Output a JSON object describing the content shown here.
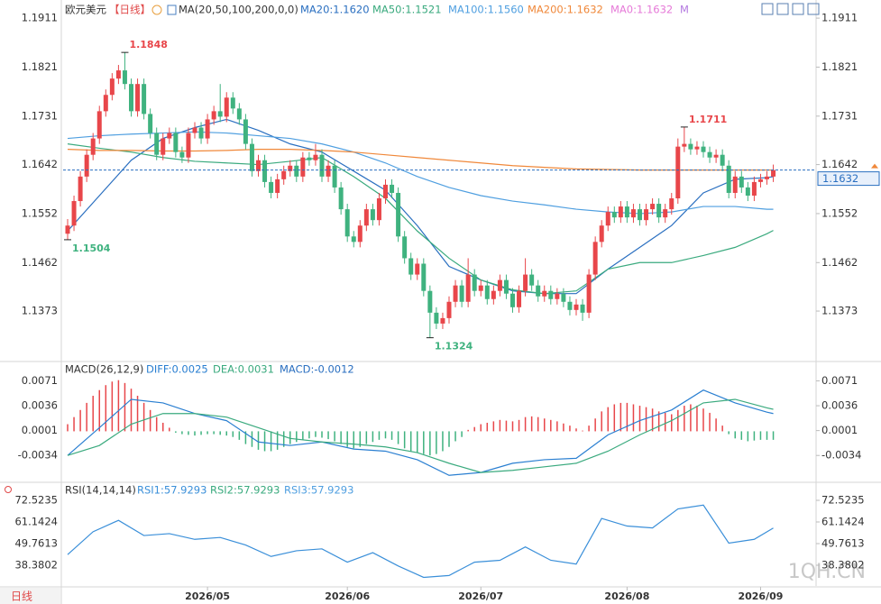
{
  "title": "欧元美元",
  "period": "【日线】",
  "indicator": "MA(20,50,100,200,0,0)",
  "watermark": "1QH.CN",
  "period_button": "日线",
  "chart_data": [
    {
      "type": "candlestick",
      "up_color": "#e8464a",
      "down_color": "#3fb27f",
      "ylim": [
        1.1282,
        1.1936
      ],
      "yticks": [
        1.1911,
        1.1821,
        1.1731,
        1.1642,
        1.1552,
        1.1462,
        1.1373
      ],
      "open": [
        1.1515,
        1.153,
        1.1575,
        1.162,
        1.166,
        1.169,
        1.174,
        1.177,
        1.18,
        1.1815,
        1.179,
        1.174,
        1.179,
        1.1735,
        1.17,
        1.166,
        1.169,
        1.17,
        1.1665,
        1.1655,
        1.17,
        1.171,
        1.169,
        1.1725,
        1.174,
        1.173,
        1.1765,
        1.1745,
        1.1725,
        1.168,
        1.163,
        1.165,
        1.161,
        1.159,
        1.1615,
        1.163,
        1.164,
        1.162,
        1.1655,
        1.165,
        1.166,
        1.162,
        1.164,
        1.16,
        1.156,
        1.151,
        1.15,
        1.153,
        1.156,
        1.154,
        1.158,
        1.1605,
        1.159,
        1.151,
        1.147,
        1.144,
        1.146,
        1.141,
        1.137,
        1.135,
        1.136,
        1.139,
        1.142,
        1.139,
        1.144,
        1.141,
        1.142,
        1.1395,
        1.141,
        1.143,
        1.1405,
        1.138,
        1.141,
        1.144,
        1.142,
        1.14,
        1.141,
        1.1395,
        1.1405,
        1.139,
        1.1375,
        1.1385,
        1.137,
        1.144,
        1.15,
        1.153,
        1.1555,
        1.1545,
        1.1565,
        1.1545,
        1.156,
        1.154,
        1.156,
        1.157,
        1.1545,
        1.156,
        1.158,
        1.1675,
        1.168,
        1.167,
        1.1675,
        1.1665,
        1.1655,
        1.166,
        1.164,
        1.159,
        1.162,
        1.16,
        1.1585,
        1.161,
        1.1615,
        1.162
      ],
      "high": [
        1.1542,
        1.1585,
        1.163,
        1.167,
        1.17,
        1.175,
        1.178,
        1.181,
        1.1825,
        1.1848,
        1.18,
        1.18,
        1.18,
        1.1745,
        1.171,
        1.17,
        1.171,
        1.171,
        1.1675,
        1.171,
        1.172,
        1.172,
        1.1735,
        1.175,
        1.179,
        1.1775,
        1.1775,
        1.1755,
        1.1735,
        1.169,
        1.166,
        1.166,
        1.162,
        1.1625,
        1.164,
        1.165,
        1.165,
        1.1665,
        1.1665,
        1.168,
        1.167,
        1.165,
        1.165,
        1.161,
        1.157,
        1.152,
        1.154,
        1.157,
        1.157,
        1.159,
        1.1615,
        1.1615,
        1.16,
        1.152,
        1.148,
        1.147,
        1.147,
        1.142,
        1.138,
        1.137,
        1.14,
        1.143,
        1.143,
        1.147,
        1.145,
        1.143,
        1.143,
        1.142,
        1.144,
        1.144,
        1.1415,
        1.142,
        1.147,
        1.145,
        1.143,
        1.142,
        1.142,
        1.1415,
        1.1415,
        1.14,
        1.1395,
        1.1395,
        1.145,
        1.151,
        1.154,
        1.1565,
        1.1565,
        1.1575,
        1.1575,
        1.157,
        1.157,
        1.157,
        1.158,
        1.158,
        1.157,
        1.159,
        1.169,
        1.1711,
        1.169,
        1.1685,
        1.1685,
        1.1675,
        1.167,
        1.167,
        1.165,
        1.163,
        1.163,
        1.161,
        1.162,
        1.1625,
        1.163,
        1.1642
      ],
      "low": [
        1.1504,
        1.152,
        1.1565,
        1.161,
        1.165,
        1.168,
        1.173,
        1.176,
        1.179,
        1.178,
        1.173,
        1.173,
        1.1725,
        1.169,
        1.165,
        1.165,
        1.168,
        1.1655,
        1.1645,
        1.1645,
        1.169,
        1.168,
        1.168,
        1.1715,
        1.172,
        1.172,
        1.1735,
        1.1715,
        1.167,
        1.162,
        1.162,
        1.16,
        1.158,
        1.158,
        1.1605,
        1.162,
        1.161,
        1.161,
        1.164,
        1.164,
        1.161,
        1.161,
        1.159,
        1.155,
        1.15,
        1.149,
        1.149,
        1.152,
        1.153,
        1.153,
        1.157,
        1.158,
        1.15,
        1.146,
        1.143,
        1.143,
        1.14,
        1.1324,
        1.134,
        1.134,
        1.135,
        1.138,
        1.138,
        1.138,
        1.14,
        1.14,
        1.1385,
        1.1385,
        1.14,
        1.1395,
        1.137,
        1.137,
        1.14,
        1.141,
        1.139,
        1.139,
        1.1385,
        1.1385,
        1.138,
        1.1365,
        1.1365,
        1.1355,
        1.136,
        1.143,
        1.149,
        1.152,
        1.1535,
        1.1535,
        1.1535,
        1.1535,
        1.153,
        1.153,
        1.155,
        1.1535,
        1.1535,
        1.155,
        1.157,
        1.1665,
        1.166,
        1.166,
        1.1655,
        1.1645,
        1.1645,
        1.163,
        1.158,
        1.158,
        1.159,
        1.1575,
        1.1575,
        1.16,
        1.1605,
        1.161
      ],
      "close": [
        1.153,
        1.1575,
        1.162,
        1.166,
        1.169,
        1.174,
        1.177,
        1.18,
        1.1815,
        1.179,
        1.174,
        1.179,
        1.1735,
        1.17,
        1.166,
        1.169,
        1.17,
        1.1665,
        1.1655,
        1.17,
        1.171,
        1.169,
        1.1725,
        1.174,
        1.173,
        1.1765,
        1.1745,
        1.1725,
        1.168,
        1.163,
        1.165,
        1.161,
        1.159,
        1.1615,
        1.163,
        1.164,
        1.162,
        1.1655,
        1.165,
        1.166,
        1.162,
        1.164,
        1.16,
        1.156,
        1.151,
        1.15,
        1.153,
        1.156,
        1.154,
        1.158,
        1.1605,
        1.159,
        1.151,
        1.147,
        1.144,
        1.146,
        1.141,
        1.137,
        1.135,
        1.136,
        1.139,
        1.142,
        1.139,
        1.144,
        1.141,
        1.142,
        1.1395,
        1.141,
        1.143,
        1.1405,
        1.138,
        1.141,
        1.144,
        1.142,
        1.14,
        1.141,
        1.1395,
        1.1405,
        1.139,
        1.1375,
        1.1385,
        1.137,
        1.144,
        1.15,
        1.153,
        1.1555,
        1.1545,
        1.1565,
        1.1545,
        1.156,
        1.154,
        1.156,
        1.157,
        1.1545,
        1.156,
        1.158,
        1.1675,
        1.168,
        1.167,
        1.1675,
        1.1665,
        1.1655,
        1.166,
        1.164,
        1.159,
        1.162,
        1.16,
        1.1585,
        1.161,
        1.1615,
        1.162,
        1.1632
      ],
      "series": [
        {
          "name": "MA20:1.1620",
          "color": "#2a6fc0",
          "x": [
            0,
            5,
            10,
            15,
            20,
            25,
            30,
            35,
            40,
            45,
            50,
            55,
            60,
            65,
            70,
            75,
            80,
            85,
            90,
            95,
            100,
            105,
            110,
            111
          ],
          "values": [
            1.152,
            1.1585,
            1.165,
            1.169,
            1.171,
            1.1725,
            1.1705,
            1.168,
            1.1665,
            1.163,
            1.1595,
            1.153,
            1.1455,
            1.143,
            1.141,
            1.1405,
            1.1405,
            1.145,
            1.149,
            1.153,
            1.159,
            1.1615,
            1.1618,
            1.162
          ]
        },
        {
          "name": "MA50:1.1521",
          "color": "#3aaa7e",
          "x": [
            0,
            5,
            10,
            15,
            20,
            25,
            30,
            35,
            40,
            45,
            50,
            55,
            60,
            65,
            70,
            75,
            80,
            85,
            90,
            95,
            100,
            105,
            110,
            111
          ],
          "values": [
            1.168,
            1.1672,
            1.1665,
            1.1655,
            1.1648,
            1.1645,
            1.1642,
            1.1648,
            1.1655,
            1.162,
            1.158,
            1.152,
            1.147,
            1.143,
            1.1412,
            1.1405,
            1.141,
            1.145,
            1.1462,
            1.1462,
            1.1475,
            1.149,
            1.1515,
            1.1521
          ]
        },
        {
          "name": "MA100:1.1560",
          "color": "#4f9fe0",
          "x": [
            0,
            5,
            10,
            15,
            20,
            25,
            30,
            35,
            40,
            45,
            50,
            55,
            60,
            65,
            70,
            75,
            80,
            85,
            90,
            95,
            100,
            105,
            110,
            111
          ],
          "values": [
            1.169,
            1.1695,
            1.1698,
            1.17,
            1.1702,
            1.17,
            1.1695,
            1.169,
            1.168,
            1.1665,
            1.1645,
            1.162,
            1.16,
            1.1585,
            1.1575,
            1.1568,
            1.156,
            1.1555,
            1.1552,
            1.1555,
            1.1565,
            1.1565,
            1.156,
            1.156
          ]
        },
        {
          "name": "MA200:1.1632",
          "color": "#f0883a",
          "x": [
            0,
            5,
            10,
            15,
            20,
            25,
            30,
            35,
            40,
            45,
            50,
            55,
            60,
            65,
            70,
            75,
            80,
            85,
            90,
            95,
            100,
            105,
            110,
            111
          ],
          "values": [
            1.167,
            1.1668,
            1.1668,
            1.1667,
            1.1667,
            1.1668,
            1.167,
            1.167,
            1.1668,
            1.1665,
            1.166,
            1.1655,
            1.165,
            1.1645,
            1.164,
            1.1637,
            1.1634,
            1.1633,
            1.1632,
            1.1632,
            1.1632,
            1.1632,
            1.1632,
            1.1632
          ]
        }
      ],
      "legend_extra": [
        {
          "text": "MA0:1.1632",
          "color": "#e67ad8"
        },
        {
          "text": "M",
          "color": "#b47ae0"
        }
      ],
      "annotations": [
        {
          "x": 9,
          "y": 1.1848,
          "color": "#e8464a"
        },
        {
          "x": 97,
          "y": 1.1711,
          "color": "#e8464a"
        },
        {
          "x": 0,
          "y": 1.1504,
          "color": "#3fb27f"
        },
        {
          "x": 57,
          "y": 1.1324,
          "color": "#3fb27f"
        }
      ],
      "last_price": 1.1632,
      "last_price_color": "#2a6fc0"
    },
    {
      "type": "macd",
      "title": "MACD(26,12,9)",
      "ylim": [
        -0.0068,
        0.0097
      ],
      "yticks": [
        0.0071,
        0.0036,
        0.0001,
        -0.0034
      ],
      "histogram_name": "MACD:-0.0012",
      "histogram_color": "#2a6fc0",
      "up_color": "#e8464a",
      "down_color": "#3fb27f",
      "histogram": [
        0.001,
        0.002,
        0.003,
        0.004,
        0.005,
        0.0058,
        0.0065,
        0.007,
        0.0072,
        0.0068,
        0.006,
        0.005,
        0.004,
        0.003,
        0.002,
        0.0012,
        0.0005,
        -0.0002,
        -0.0004,
        -0.0005,
        -0.0006,
        -0.0005,
        -0.0004,
        -0.0004,
        -0.0005,
        -0.0006,
        -0.0008,
        -0.0012,
        -0.0018,
        -0.0022,
        -0.0026,
        -0.0028,
        -0.0028,
        -0.0026,
        -0.0022,
        -0.0018,
        -0.0015,
        -0.0012,
        -0.001,
        -0.0008,
        -0.0009,
        -0.0011,
        -0.0014,
        -0.0018,
        -0.0022,
        -0.0024,
        -0.0022,
        -0.0018,
        -0.0015,
        -0.0012,
        -0.001,
        -0.0012,
        -0.0018,
        -0.0024,
        -0.0028,
        -0.003,
        -0.0032,
        -0.0034,
        -0.0032,
        -0.0028,
        -0.0022,
        -0.0014,
        -0.0008,
        0.0002,
        0.0006,
        0.001,
        0.0012,
        0.0014,
        0.0016,
        0.0015,
        0.0014,
        0.0016,
        0.002,
        0.0021,
        0.002,
        0.0018,
        0.0016,
        0.0014,
        0.0011,
        0.0008,
        0.0004,
        0.0001,
        0.0008,
        0.0018,
        0.0028,
        0.0034,
        0.0038,
        0.004,
        0.004,
        0.0038,
        0.0036,
        0.0034,
        0.0032,
        0.0028,
        0.0026,
        0.0024,
        0.003,
        0.0036,
        0.0038,
        0.0036,
        0.0032,
        0.0026,
        0.0018,
        0.0008,
        -0.0004,
        -0.001,
        -0.0012,
        -0.0014,
        -0.0013,
        -0.0012,
        -0.0012,
        -0.0012
      ],
      "series": [
        {
          "name": "DIFF:0.0025",
          "color": "#2a7fd1",
          "x": [
            0,
            5,
            10,
            15,
            20,
            25,
            30,
            35,
            40,
            45,
            50,
            55,
            60,
            65,
            70,
            75,
            80,
            85,
            90,
            95,
            100,
            105,
            110,
            111
          ],
          "values": [
            -0.0034,
            0.0005,
            0.0045,
            0.004,
            0.0025,
            0.0015,
            -0.0015,
            -0.002,
            -0.0015,
            -0.0025,
            -0.0028,
            -0.004,
            -0.0062,
            -0.0058,
            -0.0045,
            -0.004,
            -0.0038,
            -0.0005,
            0.0015,
            0.003,
            0.0058,
            0.004,
            0.0027,
            0.0025
          ]
        },
        {
          "name": "DEA:0.0031",
          "color": "#3aaa7e",
          "x": [
            0,
            5,
            10,
            15,
            20,
            25,
            30,
            35,
            40,
            45,
            50,
            55,
            60,
            65,
            70,
            75,
            80,
            85,
            90,
            95,
            100,
            105,
            110,
            111
          ],
          "values": [
            -0.0034,
            -0.002,
            0.001,
            0.0025,
            0.0025,
            0.002,
            0.0005,
            -0.001,
            -0.0015,
            -0.0018,
            -0.0022,
            -0.003,
            -0.0045,
            -0.0058,
            -0.0055,
            -0.005,
            -0.0045,
            -0.0028,
            -0.0005,
            0.0015,
            0.004,
            0.0045,
            0.0033,
            0.0031
          ]
        }
      ]
    },
    {
      "type": "line",
      "title": "RSI(14,14,14)",
      "ylim": [
        27.48,
        81.53
      ],
      "yticks": [
        72.5235,
        61.1424,
        49.7613,
        38.3802
      ],
      "series": [
        {
          "name": "RSI1:57.9293",
          "color": "#3a8fd9",
          "x": [
            0,
            4,
            8,
            12,
            16,
            20,
            24,
            28,
            32,
            36,
            40,
            44,
            48,
            52,
            56,
            60,
            64,
            68,
            72,
            76,
            80,
            84,
            88,
            92,
            96,
            100,
            104,
            108,
            111
          ],
          "values": [
            44,
            56,
            62,
            54,
            55,
            52,
            53,
            49,
            43,
            46,
            47,
            40,
            45,
            38,
            32,
            33,
            40,
            41,
            48,
            41,
            39,
            63,
            59,
            58,
            68,
            70,
            50,
            52,
            57.9293
          ]
        }
      ],
      "legend_extra": [
        {
          "text": "RSI2:57.9293",
          "color": "#3aaa7e"
        },
        {
          "text": "RSI3:57.9293",
          "color": "#4f9fe0"
        }
      ],
      "xticks": [
        {
          "value": 22,
          "label": "2026/05"
        },
        {
          "value": 44,
          "label": "2026/06"
        },
        {
          "value": 65,
          "label": "2026/07"
        },
        {
          "value": 88,
          "label": "2026/08"
        },
        {
          "value": 109,
          "label": "2026/09"
        }
      ]
    }
  ]
}
